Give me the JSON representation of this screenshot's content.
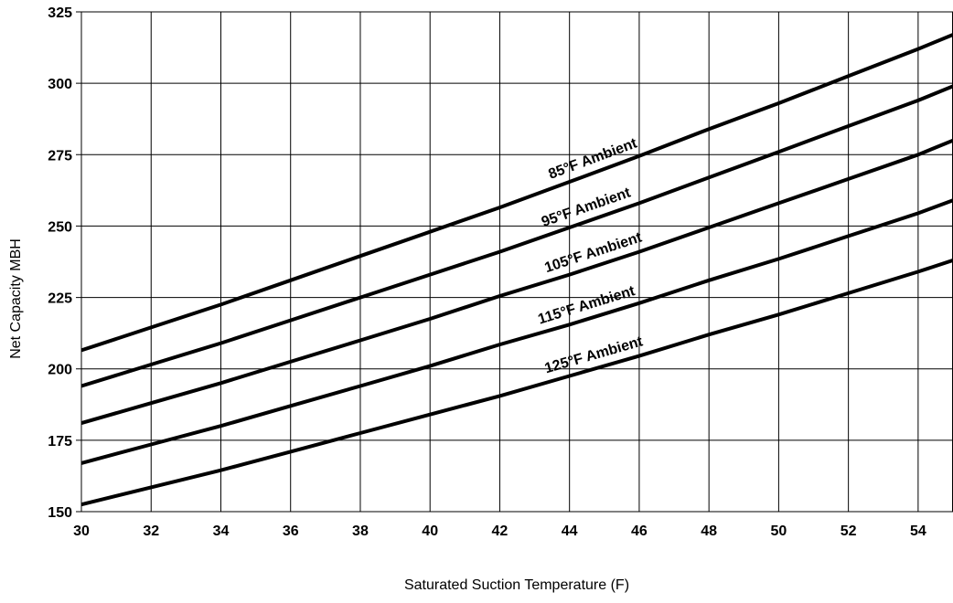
{
  "chart_data": {
    "type": "line",
    "title": "",
    "xlabel": "Saturated Suction Temperature (F)",
    "ylabel": "Net Capacity MBH",
    "xlim": [
      30,
      55
    ],
    "ylim": [
      150,
      325
    ],
    "xticks": [
      30,
      32,
      34,
      36,
      38,
      40,
      42,
      44,
      46,
      48,
      50,
      52,
      54
    ],
    "yticks": [
      150,
      175,
      200,
      225,
      250,
      275,
      300,
      325
    ],
    "xtick_labels": [
      "30",
      "32",
      "34",
      "36",
      "38",
      "40",
      "42",
      "44",
      "46",
      "48",
      "50",
      "52",
      "54"
    ],
    "ytick_labels": [
      "150",
      "175",
      "200",
      "225",
      "250",
      "275",
      "300",
      "325"
    ],
    "grid": true,
    "legend": "none",
    "series": [
      {
        "name": "85°F Ambient",
        "x": [
          30,
          32,
          34,
          36,
          38,
          40,
          42,
          44,
          46,
          48,
          50,
          52,
          54,
          55
        ],
        "y": [
          206.5,
          214.5,
          222.5,
          231.0,
          239.5,
          248.0,
          256.5,
          265.5,
          274.5,
          284.0,
          293.0,
          302.5,
          312.0,
          317.0
        ]
      },
      {
        "name": "95°F Ambient",
        "x": [
          30,
          32,
          34,
          36,
          38,
          40,
          42,
          44,
          46,
          48,
          50,
          52,
          54,
          55
        ],
        "y": [
          194.0,
          201.5,
          209.0,
          217.0,
          225.0,
          233.0,
          241.0,
          249.5,
          258.0,
          267.0,
          276.0,
          285.0,
          294.0,
          299.0
        ]
      },
      {
        "name": "105°F Ambient",
        "x": [
          30,
          32,
          34,
          36,
          38,
          40,
          42,
          44,
          46,
          48,
          50,
          52,
          54,
          55
        ],
        "y": [
          181.0,
          188.0,
          195.0,
          202.5,
          210.0,
          217.5,
          225.5,
          233.0,
          241.0,
          249.5,
          258.0,
          266.5,
          275.0,
          280.0
        ]
      },
      {
        "name": "115°F Ambient",
        "x": [
          30,
          32,
          34,
          36,
          38,
          40,
          42,
          44,
          46,
          48,
          50,
          52,
          54,
          55
        ],
        "y": [
          167.0,
          173.5,
          180.0,
          187.0,
          194.0,
          201.0,
          208.5,
          215.5,
          223.0,
          231.0,
          238.5,
          246.5,
          254.5,
          259.0
        ]
      },
      {
        "name": "125°F Ambient",
        "x": [
          30,
          32,
          34,
          36,
          38,
          40,
          42,
          44,
          46,
          48,
          50,
          52,
          54,
          55
        ],
        "y": [
          152.5,
          158.5,
          164.5,
          171.0,
          177.5,
          184.0,
          190.5,
          197.5,
          204.5,
          212.0,
          219.0,
          226.5,
          234.0,
          238.0
        ]
      }
    ],
    "annotations": [
      {
        "text": "85°F Ambient",
        "series": 0
      },
      {
        "text": "95°F Ambient",
        "series": 1
      },
      {
        "text": "105°F Ambient",
        "series": 2
      },
      {
        "text": "115°F Ambient",
        "series": 3
      },
      {
        "text": "125°F Ambient",
        "series": 4
      }
    ]
  }
}
